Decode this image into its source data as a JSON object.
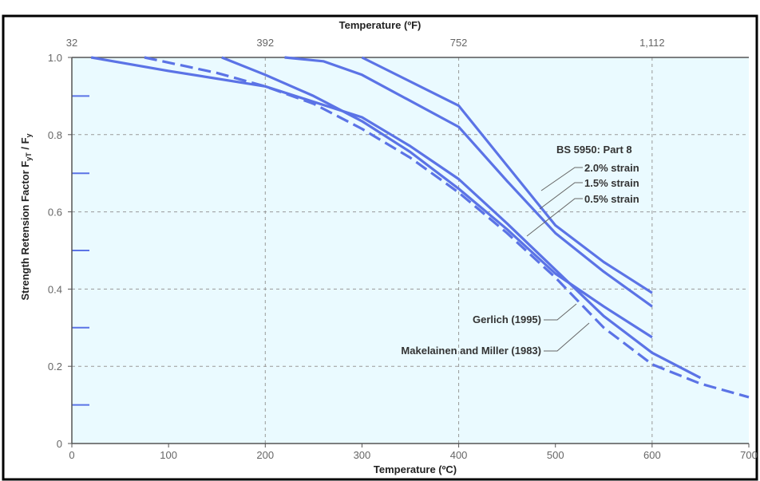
{
  "chart_data": {
    "type": "line",
    "title": "",
    "xlabel": "Temperature (ºC)",
    "x2label": "Temperature (ºF)",
    "ylabel": "Strength Retension Factor F",
    "ylabel_sub1": "yT",
    "ylabel_mid": " / F",
    "ylabel_sub2": "y",
    "xlim": [
      0,
      700
    ],
    "ylim": [
      0,
      1.0
    ],
    "x_ticks": [
      0,
      100,
      200,
      300,
      400,
      500,
      600,
      700
    ],
    "x_tick_labels": [
      "0",
      "100",
      "200",
      "300",
      "400",
      "500",
      "600",
      "700"
    ],
    "x2_ticks_c": [
      0,
      200,
      400,
      600
    ],
    "x2_tick_labels": [
      "32",
      "392",
      "752",
      "1,112"
    ],
    "y_ticks": [
      0,
      0.2,
      0.4,
      0.6,
      0.8,
      1.0
    ],
    "y_tick_labels": [
      "0",
      "0.2",
      "0.4",
      "0.6",
      "0.8",
      "1.0"
    ],
    "grid": true,
    "colors": {
      "line": "#5b73e6",
      "plot_bg": "#eafaff",
      "frame": "#000000",
      "grid": "#999999",
      "leader": "#666666"
    },
    "series": [
      {
        "name": "2.0% strain",
        "style": "solid",
        "x": [
          300,
          400,
          450,
          500,
          550,
          600
        ],
        "y": [
          1.0,
          0.875,
          0.72,
          0.565,
          0.47,
          0.39
        ]
      },
      {
        "name": "1.5% strain",
        "style": "solid",
        "x": [
          220,
          260,
          300,
          400,
          450,
          500,
          550,
          600
        ],
        "y": [
          1.0,
          0.99,
          0.955,
          0.82,
          0.68,
          0.545,
          0.445,
          0.355
        ]
      },
      {
        "name": "0.5% strain",
        "style": "solid",
        "x": [
          155,
          200,
          250,
          300,
          350,
          400,
          450,
          500,
          550,
          600
        ],
        "y": [
          1.0,
          0.955,
          0.9,
          0.835,
          0.755,
          0.66,
          0.555,
          0.44,
          0.355,
          0.275
        ]
      },
      {
        "name": "Gerlich (1995)",
        "style": "solid",
        "x": [
          20,
          100,
          200,
          300,
          350,
          400,
          450,
          500,
          550,
          600,
          650
        ],
        "y": [
          1.0,
          0.965,
          0.925,
          0.845,
          0.77,
          0.685,
          0.57,
          0.45,
          0.33,
          0.235,
          0.17
        ]
      },
      {
        "name": "Makelainen and Miller (1983)",
        "style": "dashed",
        "x": [
          75,
          150,
          200,
          250,
          300,
          350,
          400,
          450,
          500,
          550,
          600,
          650,
          700
        ],
        "y": [
          1.0,
          0.96,
          0.925,
          0.88,
          0.815,
          0.74,
          0.65,
          0.545,
          0.43,
          0.3,
          0.205,
          0.155,
          0.12
        ]
      }
    ],
    "annotations": {
      "group_label": "BS 5950: Part 8",
      "strain_2_0": "2.0% strain",
      "strain_1_5": "1.5% strain",
      "strain_0_5": "0.5% strain",
      "gerlich": "Gerlich (1995)",
      "makelainen": "Makelainen and Miller (1983)"
    }
  }
}
